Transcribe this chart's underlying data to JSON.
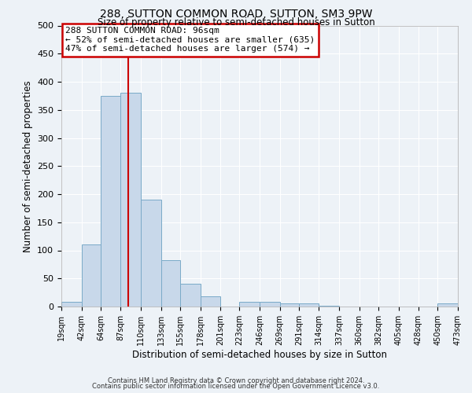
{
  "title": "288, SUTTON COMMON ROAD, SUTTON, SM3 9PW",
  "subtitle": "Size of property relative to semi-detached houses in Sutton",
  "xlabel": "Distribution of semi-detached houses by size in Sutton",
  "ylabel": "Number of semi-detached properties",
  "bar_color": "#c8d8ea",
  "bar_edge_color": "#7aaac8",
  "bin_edges": [
    19,
    42,
    64,
    87,
    110,
    133,
    155,
    178,
    201,
    223,
    246,
    269,
    291,
    314,
    337,
    360,
    382,
    405,
    428,
    450,
    473
  ],
  "bar_heights": [
    8,
    110,
    375,
    380,
    190,
    83,
    40,
    18,
    0,
    8,
    8,
    5,
    5,
    1,
    0,
    0,
    0,
    0,
    0,
    5
  ],
  "tick_labels": [
    "19sqm",
    "42sqm",
    "64sqm",
    "87sqm",
    "110sqm",
    "133sqm",
    "155sqm",
    "178sqm",
    "201sqm",
    "223sqm",
    "246sqm",
    "269sqm",
    "291sqm",
    "314sqm",
    "337sqm",
    "360sqm",
    "382sqm",
    "405sqm",
    "428sqm",
    "450sqm",
    "473sqm"
  ],
  "vline_x": 96,
  "vline_color": "#cc0000",
  "ylim": [
    0,
    500
  ],
  "yticks": [
    0,
    50,
    100,
    150,
    200,
    250,
    300,
    350,
    400,
    450,
    500
  ],
  "annotation_line1": "288 SUTTON COMMON ROAD: 96sqm",
  "annotation_line2": "← 52% of semi-detached houses are smaller (635)",
  "annotation_line3": "47% of semi-detached houses are larger (574) →",
  "annotation_box_color": "#ffffff",
  "annotation_box_edge": "#cc0000",
  "footer_line1": "Contains HM Land Registry data © Crown copyright and database right 2024.",
  "footer_line2": "Contains public sector information licensed under the Open Government Licence v3.0.",
  "background_color": "#edf2f7",
  "grid_color": "#ffffff",
  "spine_color": "#aaaaaa"
}
